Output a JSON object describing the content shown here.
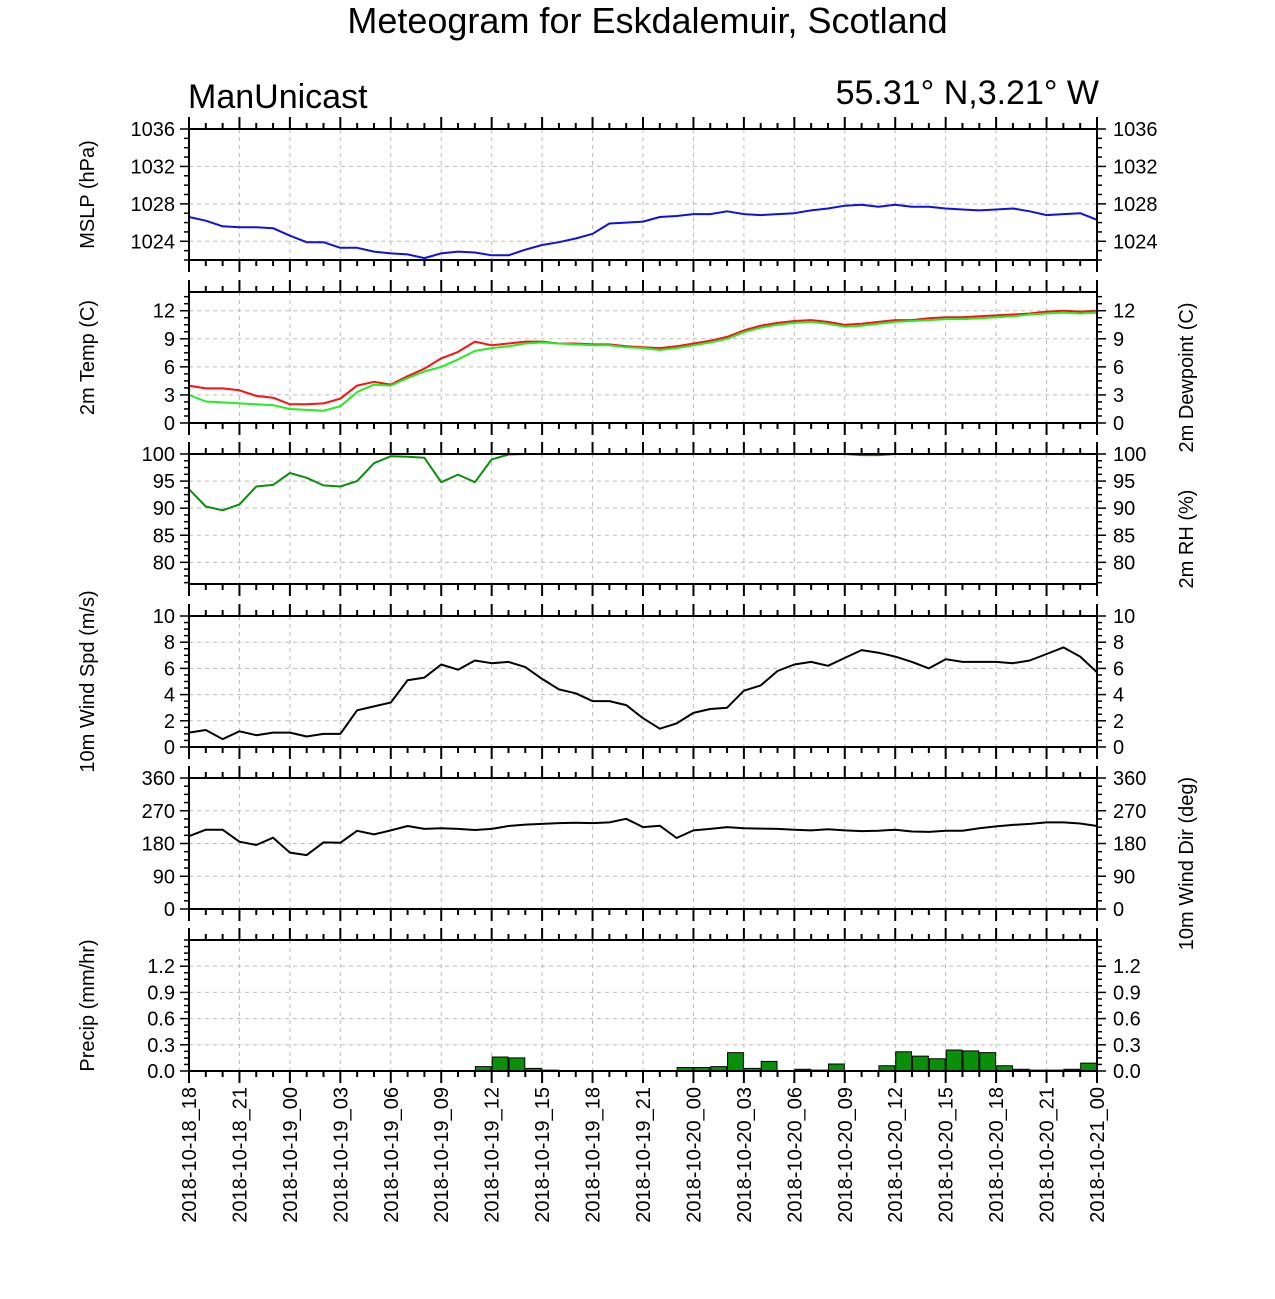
{
  "title": "Meteogram for Eskdalemuir, Scotland",
  "model": "ManUnicast",
  "location": "55.31° N,3.21° W",
  "colors": {
    "mslp": "#1010e0",
    "temp": "#ff1010",
    "dewpoint": "#22ee22",
    "rh": "#0a8f0a",
    "wind": "#000000",
    "precip_fill": "#0a8f0a",
    "grid": "#bbbbbb"
  },
  "chart_data": [
    {
      "type": "line",
      "key": "mslp",
      "ylabel": "MSLP (hPa)",
      "ylabel_right": "",
      "ylim": [
        1022,
        1036
      ],
      "ticks": [
        1024,
        1028,
        1032,
        1036
      ],
      "tick_labels": [
        "1024",
        "1028",
        "1032",
        "1036"
      ],
      "right_ticks": true,
      "series": [
        {
          "color_key": "mslp",
          "values": [
            1026.6,
            1026.2,
            1025.6,
            1025.5,
            1025.5,
            1025.4,
            1024.6,
            1023.9,
            1023.9,
            1023.3,
            1023.3,
            1022.9,
            1022.7,
            1022.6,
            1022.2,
            1022.7,
            1022.9,
            1022.8,
            1022.5,
            1022.5,
            1023.1,
            1023.6,
            1023.9,
            1024.3,
            1024.8,
            1025.9,
            1026.0,
            1026.1,
            1026.6,
            1026.7,
            1026.9,
            1026.9,
            1027.2,
            1026.9,
            1026.8,
            1026.9,
            1027.0,
            1027.3,
            1027.5,
            1027.8,
            1027.9,
            1027.7,
            1027.9,
            1027.7,
            1027.7,
            1027.5,
            1027.4,
            1027.3,
            1027.4,
            1027.5,
            1027.2,
            1026.8,
            1026.9,
            1027.0,
            1026.3
          ]
        }
      ]
    },
    {
      "type": "line",
      "key": "temp",
      "ylabel": "2m Temp (C)",
      "ylabel_right": "2m Dewpoint (C)",
      "ylim": [
        0,
        14
      ],
      "ticks": [
        0,
        3,
        6,
        9,
        12
      ],
      "tick_labels": [
        "0",
        "3",
        "6",
        "9",
        "12"
      ],
      "right_ticks": true,
      "series": [
        {
          "color_key": "temp",
          "values": [
            4.0,
            3.7,
            3.7,
            3.5,
            2.9,
            2.7,
            2.0,
            2.0,
            2.1,
            2.6,
            4.0,
            4.4,
            4.1,
            5.0,
            5.8,
            6.9,
            7.6,
            8.7,
            8.3,
            8.5,
            8.7,
            8.7,
            8.5,
            8.5,
            8.4,
            8.4,
            8.2,
            8.1,
            8.0,
            8.2,
            8.5,
            8.8,
            9.2,
            9.9,
            10.4,
            10.7,
            10.9,
            11.0,
            10.8,
            10.5,
            10.6,
            10.8,
            11.0,
            11.0,
            11.2,
            11.3,
            11.3,
            11.4,
            11.5,
            11.6,
            11.7,
            11.9,
            12.0,
            11.9,
            12.0
          ]
        },
        {
          "color_key": "dewpoint",
          "values": [
            3.0,
            2.3,
            2.2,
            2.1,
            2.0,
            1.9,
            1.5,
            1.4,
            1.3,
            1.8,
            3.3,
            4.1,
            4.0,
            4.8,
            5.5,
            6.0,
            6.8,
            7.7,
            8.0,
            8.2,
            8.5,
            8.6,
            8.5,
            8.4,
            8.3,
            8.3,
            8.1,
            8.0,
            7.8,
            8.0,
            8.3,
            8.6,
            9.0,
            9.7,
            10.2,
            10.5,
            10.7,
            10.8,
            10.6,
            10.3,
            10.4,
            10.6,
            10.8,
            10.9,
            11.0,
            11.1,
            11.1,
            11.2,
            11.3,
            11.4,
            11.6,
            11.7,
            11.8,
            11.7,
            11.8
          ]
        }
      ]
    },
    {
      "type": "line",
      "key": "rh",
      "ylabel": "",
      "ylabel_right": "2m RH (%)",
      "ylim": [
        76,
        100
      ],
      "ticks": [
        80,
        85,
        90,
        95,
        100
      ],
      "tick_labels": [
        "80",
        "85",
        "90",
        "95",
        "100"
      ],
      "right_ticks": true,
      "series": [
        {
          "color_key": "rh",
          "values": [
            93.5,
            90.3,
            89.6,
            90.7,
            94.0,
            94.3,
            96.5,
            95.6,
            94.2,
            94.0,
            95.0,
            98.3,
            99.6,
            99.5,
            99.3,
            94.8,
            96.2,
            94.8,
            99.0,
            99.9,
            100,
            100,
            100,
            100,
            100,
            100,
            100,
            100,
            100,
            100,
            100,
            100,
            100,
            100,
            100,
            100,
            100,
            100,
            100,
            100,
            99.8,
            99.8,
            100,
            100,
            100,
            100,
            100,
            100,
            100,
            100,
            100,
            100,
            100,
            100,
            100
          ]
        }
      ]
    },
    {
      "type": "line",
      "key": "wind_speed",
      "ylabel": "10m Wind Spd (m/s)",
      "ylabel_right": "",
      "ylim": [
        0,
        10
      ],
      "ticks": [
        0,
        2,
        4,
        6,
        8,
        10
      ],
      "tick_labels": [
        "0",
        "2",
        "4",
        "6",
        "8",
        "10"
      ],
      "right_ticks": true,
      "series": [
        {
          "color_key": "wind",
          "values": [
            1.1,
            1.3,
            0.6,
            1.2,
            0.9,
            1.1,
            1.1,
            0.8,
            1.0,
            1.0,
            2.8,
            3.1,
            3.4,
            5.1,
            5.3,
            6.3,
            5.9,
            6.6,
            6.4,
            6.5,
            6.1,
            5.2,
            4.4,
            4.1,
            3.5,
            3.5,
            3.2,
            2.2,
            1.4,
            1.8,
            2.6,
            2.9,
            3.0,
            4.3,
            4.7,
            5.8,
            6.3,
            6.5,
            6.2,
            6.8,
            7.4,
            7.2,
            6.9,
            6.5,
            6.0,
            6.7,
            6.5,
            6.5,
            6.5,
            6.4,
            6.6,
            7.1,
            7.6,
            6.9,
            5.7
          ]
        }
      ]
    },
    {
      "type": "line",
      "key": "wind_dir",
      "ylabel": "",
      "ylabel_right": "10m Wind Dir (deg)",
      "ylim": [
        0,
        360
      ],
      "ticks": [
        0,
        90,
        180,
        270,
        360
      ],
      "tick_labels": [
        "0",
        "90",
        "180",
        "270",
        "360"
      ],
      "right_ticks": true,
      "series": [
        {
          "color_key": "wind",
          "values": [
            200,
            218,
            218,
            185,
            176,
            196,
            155,
            148,
            183,
            182,
            215,
            205,
            216,
            228,
            220,
            222,
            220,
            217,
            220,
            228,
            232,
            234,
            236,
            237,
            236,
            238,
            248,
            225,
            229,
            195,
            216,
            220,
            225,
            222,
            221,
            220,
            218,
            216,
            219,
            216,
            214,
            215,
            218,
            213,
            212,
            215,
            215,
            222,
            227,
            231,
            234,
            238,
            238,
            235,
            228
          ]
        }
      ]
    },
    {
      "type": "bar",
      "key": "precip",
      "ylabel": "Precip (mm/hr)",
      "ylabel_right": "",
      "ylim": [
        0,
        1.5
      ],
      "ticks": [
        0.0,
        0.3,
        0.6,
        0.9,
        1.2
      ],
      "tick_labels": [
        "0.0",
        "0.3",
        "0.6",
        "0.9",
        "1.2"
      ],
      "right_ticks": true,
      "values": [
        0,
        0,
        0,
        0,
        0,
        0,
        0,
        0,
        0,
        0,
        0,
        0,
        0,
        0,
        0,
        0,
        0,
        0.05,
        0.16,
        0.15,
        0.03,
        0.01,
        0,
        0,
        0,
        0,
        0,
        0,
        0,
        0.04,
        0.04,
        0.05,
        0.21,
        0.03,
        0.11,
        0,
        0.02,
        0.01,
        0.08,
        0,
        0,
        0.06,
        0.22,
        0.17,
        0.14,
        0.24,
        0.23,
        0.21,
        0.06,
        0.02,
        0.01,
        0.01,
        0.02,
        0.09,
        0
      ]
    }
  ],
  "x_axis": {
    "num_points": 55,
    "tick_labels": [
      "2018-10-18_18",
      "2018-10-18_21",
      "2018-10-19_00",
      "2018-10-19_03",
      "2018-10-19_06",
      "2018-10-19_09",
      "2018-10-19_12",
      "2018-10-19_15",
      "2018-10-19_18",
      "2018-10-19_21",
      "2018-10-20_00",
      "2018-10-20_03",
      "2018-10-20_06",
      "2018-10-20_09",
      "2018-10-20_12",
      "2018-10-20_15",
      "2018-10-20_18",
      "2018-10-20_21",
      "2018-10-21_00"
    ]
  }
}
